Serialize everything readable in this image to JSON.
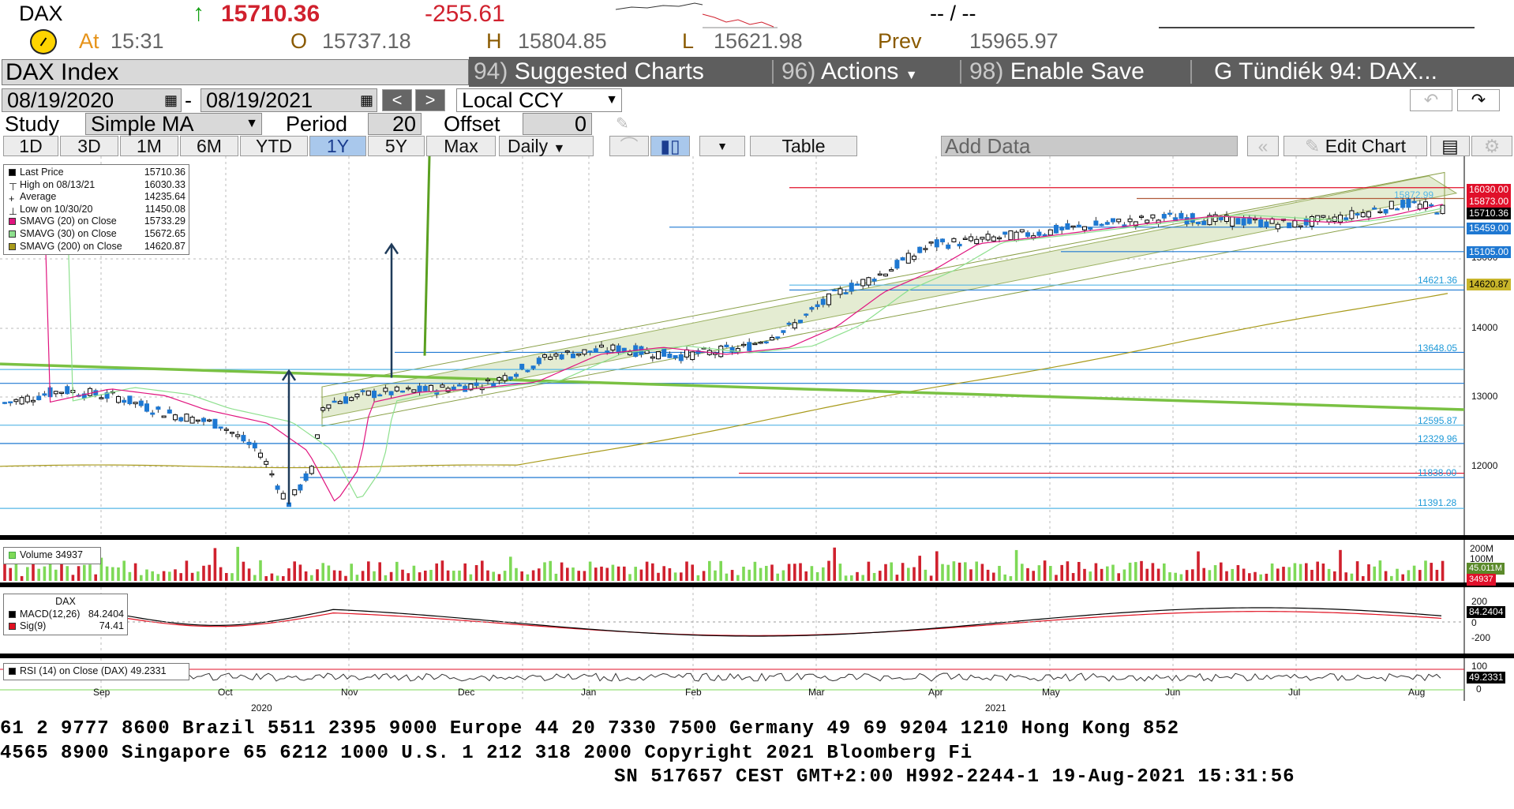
{
  "quote": {
    "ticker": "DAX",
    "arrow": "↑",
    "last": "15710.36",
    "change": "-255.61",
    "dashes": "-- / --",
    "at_label": "At",
    "time": "15:31",
    "open_label": "O",
    "open": "15737.18",
    "high_label": "H",
    "high": "15804.85",
    "low_label": "L",
    "low": "15621.98",
    "prev_label": "Prev",
    "prev": "15965.97"
  },
  "toolbar1": {
    "security": "DAX Index",
    "suggested_num": "94)",
    "suggested": "Suggested Charts",
    "actions_num": "96)",
    "actions": "Actions",
    "enable_num": "98)",
    "enable": "Enable Save",
    "title": "G Tündiék 94: DAX..."
  },
  "toolbar2": {
    "start_date": "08/19/2020",
    "dash": "-",
    "end_date": "08/19/2021",
    "prev": "<",
    "next": ">",
    "currency": "Local CCY"
  },
  "toolbar3": {
    "study_label": "Study",
    "study": "Simple MA",
    "period_label": "Period",
    "period": "20",
    "offset_label": "Offset",
    "offset": "0"
  },
  "toolbar4": {
    "ranges": [
      "1D",
      "3D",
      "1M",
      "6M",
      "YTD",
      "1Y",
      "5Y",
      "Max"
    ],
    "selected": "1Y",
    "frequency": "Daily",
    "table": "Table",
    "add_data": "Add Data",
    "edit_chart": "Edit Chart"
  },
  "legend_main": [
    {
      "label": "Last Price",
      "value": "15710.36",
      "color": "#000000"
    },
    {
      "label": "High on 08/13/21",
      "value": "16030.33",
      "color": "none"
    },
    {
      "label": "Average",
      "value": "14235.64",
      "color": "none"
    },
    {
      "label": "Low on 10/30/20",
      "value": "11450.08",
      "color": "none"
    },
    {
      "label": "SMAVG (20)  on Close",
      "value": "15733.29",
      "color": "#e0157f"
    },
    {
      "label": "SMAVG (30)  on Close",
      "value": "15672.65",
      "color": "#8ee08e"
    },
    {
      "label": "SMAVG (200)  on Close",
      "value": "14620.87",
      "color": "#a89a1a"
    }
  ],
  "legend_volume": {
    "label": "Volume",
    "value": "34937"
  },
  "legend_macd": {
    "title": "DAX",
    "rows": [
      {
        "label": "MACD(12,26)",
        "value": "84.2404",
        "color": "#000000"
      },
      {
        "label": "Sig(9)",
        "value": "74.41",
        "color": "#e01020"
      }
    ]
  },
  "legend_rsi": {
    "label": "RSI (14)  on Close (DAX)",
    "value": "49.2331"
  },
  "y_axis_ticks": [
    "15000",
    "14000",
    "13000",
    "12000"
  ],
  "y_labels": [
    {
      "text": "16030.00",
      "color": "#e0102a"
    },
    {
      "text": "15873.00",
      "color": "#e0102a"
    },
    {
      "text": "15710.36",
      "color": "#000000"
    },
    {
      "text": "15459.00",
      "color": "#1e78d2"
    },
    {
      "text": "15105.00",
      "color": "#1e78d2"
    },
    {
      "text": "14620.87",
      "color": "#a89a1a"
    }
  ],
  "level_labels": [
    "15872.99",
    "14621.36",
    "13648.05",
    "12595.87",
    "12329.96",
    "11838.00",
    "11391.28"
  ],
  "volume_ticks": [
    "200M",
    "100M",
    "45.011M",
    "34937"
  ],
  "macd_ticks": [
    "200",
    "84.2404",
    "0",
    "-200"
  ],
  "rsi_ticks": [
    "100",
    "49.2331",
    "0"
  ],
  "x_months": [
    "Sep",
    "Oct",
    "Nov",
    "Dec",
    "Jan",
    "Feb",
    "Mar",
    "Apr",
    "May",
    "Jun",
    "Jul",
    "Aug"
  ],
  "x_years": [
    "2020",
    "2021"
  ],
  "footer": {
    "line1": "61 2 9777 8600 Brazil 5511 2395 9000 Europe 44 20 7330 7500 Germany 49 69 9204 1210 Hong Kong 852",
    "line2": " 4565 8900       Singapore 65 6212 1000       U.S. 1 212 318 2000       Copyright 2021 Bloomberg Fi",
    "line3": "SN 517657 CEST GMT+2:00 H992-2244-1 19-Aug-2021 15:31:56"
  },
  "colors": {
    "up_candle": "#1e78d2",
    "down_candle": "#000000",
    "channel_fill": "#e4ecd2",
    "trend_line": "#7ac143",
    "resistance": "#e0102a"
  }
}
